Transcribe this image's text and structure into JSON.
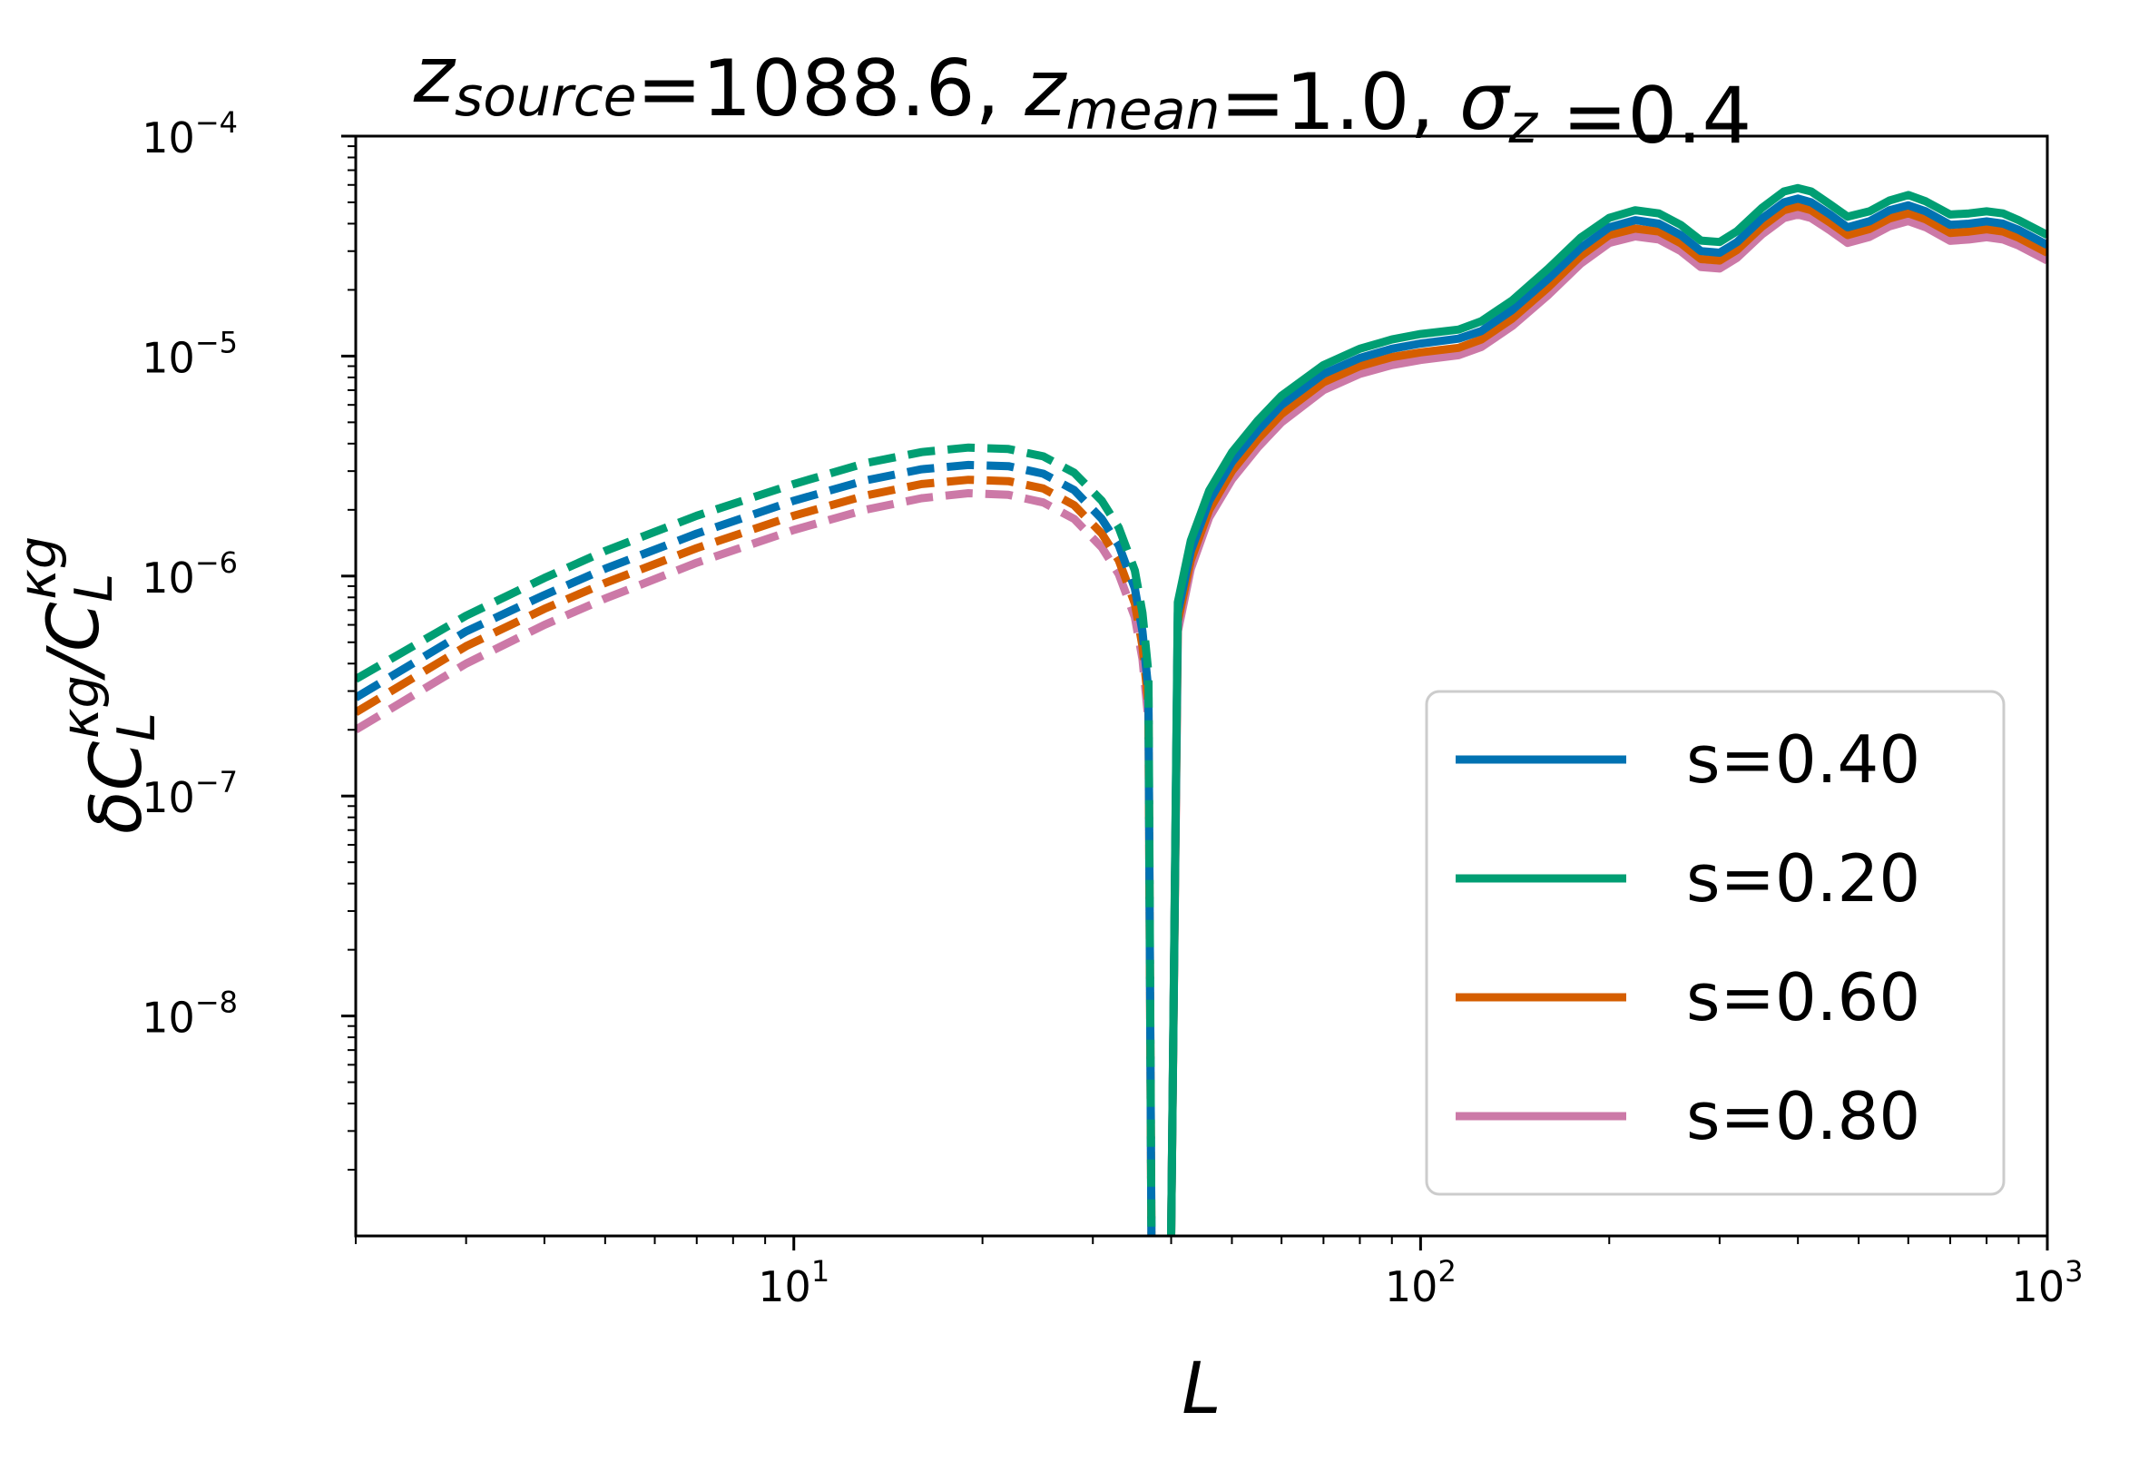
{
  "chart_data": {
    "type": "line",
    "title": {
      "parts": [
        {
          "text": "z",
          "style": "italic"
        },
        {
          "text": "source",
          "style": "italic-sub"
        },
        {
          "text": "=1088.6, ",
          "style": "normal"
        },
        {
          "text": "z",
          "style": "italic"
        },
        {
          "text": "mean",
          "style": "italic-sub"
        },
        {
          "text": "=1.0, ",
          "style": "normal"
        },
        {
          "text": "σ",
          "style": "italic"
        },
        {
          "text": "z",
          "style": "italic-sub"
        },
        {
          "text": " =0.4",
          "style": "normal"
        }
      ]
    },
    "xlabel": "L",
    "ylabel": {
      "parts": [
        {
          "text": "δC",
          "style": "italic"
        },
        {
          "text": "L",
          "style": "italic-sub"
        },
        {
          "text": "κg",
          "style": "italic-sup"
        },
        {
          "text": "/C",
          "style": "italic"
        },
        {
          "text": "L",
          "style": "italic-sub"
        },
        {
          "text": "κg",
          "style": "italic-sup"
        }
      ]
    },
    "xscale": "log",
    "yscale": "log",
    "xlim": [
      2,
      1000
    ],
    "ylim": [
      1e-09,
      0.0001
    ],
    "x_ticks": [
      {
        "value": 10,
        "base": "10",
        "exp": "1"
      },
      {
        "value": 100,
        "base": "10",
        "exp": "2"
      },
      {
        "value": 1000,
        "base": "10",
        "exp": "3"
      }
    ],
    "y_ticks": [
      {
        "value": 1e-08,
        "base": "10",
        "exp": "−8"
      },
      {
        "value": 1e-07,
        "base": "10",
        "exp": "−7"
      },
      {
        "value": 1e-06,
        "base": "10",
        "exp": "−6"
      },
      {
        "value": 1e-05,
        "base": "10",
        "exp": "−5"
      },
      {
        "value": 0.0001,
        "base": "10",
        "exp": "−4"
      }
    ],
    "grid": false,
    "legend_position": "lower-right",
    "note": "Dashed segments show negative values (absolute value plotted); solid segments show positive values.",
    "series": [
      {
        "name": "s=0.40",
        "color": "#0072b2",
        "negative_branch": {
          "x": [
            2,
            3,
            4,
            5,
            7,
            10,
            13,
            16,
            19,
            22,
            25,
            28,
            31,
            33,
            35,
            36,
            36.8,
            37.2
          ],
          "y": [
            2.8e-07,
            5.6e-07,
            8.2e-07,
            1.08e-06,
            1.56e-06,
            2.2e-06,
            2.72e-06,
            3.06e-06,
            3.2e-06,
            3.16e-06,
            2.92e-06,
            2.46e-06,
            1.82e-06,
            1.38e-06,
            8.8e-07,
            5.6e-07,
            3e-07,
            1e-09
          ]
        },
        "positive_branch": {
          "x": [
            40,
            41,
            43,
            46,
            50,
            55,
            60,
            70,
            80,
            90,
            100,
            115,
            125,
            140,
            160,
            180,
            200,
            220,
            240,
            260,
            280,
            300,
            320,
            350,
            380,
            400,
            420,
            450,
            480,
            520,
            560,
            600,
            640,
            700,
            750,
            800,
            850,
            900,
            1000
          ],
          "y": [
            1e-09,
            6.8e-07,
            1.3e-06,
            2.2e-06,
            3.3e-06,
            4.6e-06,
            6e-06,
            8.3e-06,
            9.8e-06,
            1.08e-05,
            1.14e-05,
            1.2e-05,
            1.3e-05,
            1.62e-05,
            2.25e-05,
            3.1e-05,
            3.85e-05,
            4.15e-05,
            4e-05,
            3.55e-05,
            3e-05,
            2.95e-05,
            3.3e-05,
            4.2e-05,
            5e-05,
            5.2e-05,
            5e-05,
            4.4e-05,
            3.85e-05,
            4.1e-05,
            4.6e-05,
            4.85e-05,
            4.55e-05,
            3.95e-05,
            4e-05,
            4.1e-05,
            4e-05,
            3.75e-05,
            3.2e-05
          ]
        }
      },
      {
        "name": "s=0.20",
        "color": "#009e73",
        "negative_branch": {
          "x": [
            2,
            3,
            4,
            5,
            7,
            10,
            13,
            16,
            19,
            22,
            25,
            28,
            31,
            33,
            35,
            36,
            36.8,
            37.2
          ],
          "y": [
            3.4e-07,
            6.6e-07,
            9.8e-07,
            1.3e-06,
            1.88e-06,
            2.62e-06,
            3.26e-06,
            3.66e-06,
            3.84e-06,
            3.78e-06,
            3.5e-06,
            2.95e-06,
            2.2e-06,
            1.66e-06,
            1.06e-06,
            6.8e-07,
            3.6e-07,
            1e-09
          ]
        },
        "positive_branch": {
          "x": [
            40,
            41,
            43,
            46,
            50,
            55,
            60,
            70,
            80,
            90,
            100,
            115,
            125,
            140,
            160,
            180,
            200,
            220,
            240,
            260,
            280,
            300,
            320,
            350,
            380,
            400,
            420,
            450,
            480,
            520,
            560,
            600,
            640,
            700,
            750,
            800,
            850,
            900,
            1000
          ],
          "y": [
            1e-09,
            7.6e-07,
            1.45e-06,
            2.45e-06,
            3.65e-06,
            5.1e-06,
            6.6e-06,
            9.1e-06,
            1.08e-05,
            1.19e-05,
            1.26e-05,
            1.32e-05,
            1.44e-05,
            1.79e-05,
            2.5e-05,
            3.45e-05,
            4.25e-05,
            4.6e-05,
            4.45e-05,
            3.95e-05,
            3.35e-05,
            3.3e-05,
            3.7e-05,
            4.7e-05,
            5.6e-05,
            5.8e-05,
            5.6e-05,
            4.9e-05,
            4.3e-05,
            4.55e-05,
            5.1e-05,
            5.4e-05,
            5.05e-05,
            4.4e-05,
            4.45e-05,
            4.55e-05,
            4.45e-05,
            4.15e-05,
            3.55e-05
          ]
        }
      },
      {
        "name": "s=0.60",
        "color": "#d55e00",
        "negative_branch": {
          "x": [
            2,
            3,
            4,
            5,
            7,
            10,
            13,
            16,
            19,
            22,
            25,
            28,
            31,
            33,
            35,
            36,
            36.8,
            37.2
          ],
          "y": [
            2.4e-07,
            4.8e-07,
            7.1e-07,
            9.3e-07,
            1.34e-06,
            1.88e-06,
            2.32e-06,
            2.62e-06,
            2.74e-06,
            2.7e-06,
            2.5e-06,
            2.1e-06,
            1.56e-06,
            1.18e-06,
            7.5e-07,
            4.8e-07,
            2.6e-07,
            1e-09
          ]
        },
        "positive_branch": {
          "x": [
            40,
            41,
            43,
            46,
            50,
            55,
            60,
            70,
            80,
            90,
            100,
            115,
            125,
            140,
            160,
            180,
            200,
            220,
            240,
            260,
            280,
            300,
            320,
            350,
            380,
            400,
            420,
            450,
            480,
            520,
            560,
            600,
            640,
            700,
            750,
            800,
            850,
            900,
            1000
          ],
          "y": [
            1e-09,
            6.2e-07,
            1.18e-06,
            2e-06,
            3e-06,
            4.2e-06,
            5.45e-06,
            7.6e-06,
            9e-06,
            9.9e-06,
            1.04e-05,
            1.09e-05,
            1.19e-05,
            1.48e-05,
            2.06e-05,
            2.85e-05,
            3.55e-05,
            3.8e-05,
            3.68e-05,
            3.26e-05,
            2.76e-05,
            2.72e-05,
            3.04e-05,
            3.86e-05,
            4.6e-05,
            4.78e-05,
            4.6e-05,
            4.05e-05,
            3.55e-05,
            3.78e-05,
            4.22e-05,
            4.46e-05,
            4.18e-05,
            3.63e-05,
            3.68e-05,
            3.77e-05,
            3.68e-05,
            3.45e-05,
            2.95e-05
          ]
        }
      },
      {
        "name": "s=0.80",
        "color": "#cc79a7",
        "negative_branch": {
          "x": [
            2,
            3,
            4,
            5,
            7,
            10,
            13,
            16,
            19,
            22,
            25,
            28,
            31,
            33,
            35,
            36,
            36.8,
            37.2
          ],
          "y": [
            2e-07,
            4e-07,
            6e-07,
            7.9e-07,
            1.15e-06,
            1.62e-06,
            2e-06,
            2.26e-06,
            2.38e-06,
            2.34e-06,
            2.16e-06,
            1.82e-06,
            1.35e-06,
            1.02e-06,
            6.5e-07,
            4.2e-07,
            2.2e-07,
            1e-09
          ]
        },
        "positive_branch": {
          "x": [
            40,
            41,
            43,
            46,
            50,
            55,
            60,
            70,
            80,
            90,
            100,
            115,
            125,
            140,
            160,
            180,
            200,
            220,
            240,
            260,
            280,
            300,
            320,
            350,
            380,
            400,
            420,
            450,
            480,
            520,
            560,
            600,
            640,
            700,
            750,
            800,
            850,
            900,
            1000
          ],
          "y": [
            1e-09,
            5.6e-07,
            1.08e-06,
            1.85e-06,
            2.75e-06,
            3.85e-06,
            5e-06,
            7e-06,
            8.3e-06,
            9.1e-06,
            9.6e-06,
            1.01e-05,
            1.1e-05,
            1.37e-05,
            1.9e-05,
            2.63e-05,
            3.27e-05,
            3.5e-05,
            3.39e-05,
            3e-05,
            2.54e-05,
            2.5e-05,
            2.8e-05,
            3.56e-05,
            4.24e-05,
            4.4e-05,
            4.24e-05,
            3.73e-05,
            3.27e-05,
            3.48e-05,
            3.89e-05,
            4.11e-05,
            3.85e-05,
            3.34e-05,
            3.39e-05,
            3.47e-05,
            3.39e-05,
            3.18e-05,
            2.72e-05
          ]
        }
      }
    ],
    "draw_order": [
      3,
      2,
      0,
      1
    ]
  }
}
